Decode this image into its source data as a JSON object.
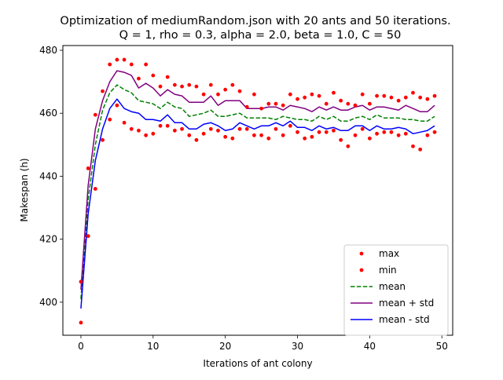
{
  "chart_data": {
    "type": "line",
    "title": "Optimization of mediumRandom.json with 20 ants and 50 iterations.",
    "subtitle": "Q = 1, rho = 0.3, alpha = 2.0, beta = 1.0, C = 50",
    "xlabel": "Iterations of ant colony",
    "ylabel": "Makespan (h)",
    "xlim": [
      -2.5,
      51.5
    ],
    "ylim": [
      389.5,
      481.5
    ],
    "xticks": [
      0,
      10,
      20,
      30,
      40,
      50
    ],
    "yticks": [
      400,
      420,
      440,
      460,
      480
    ],
    "grid": false,
    "legend_position": "lower-right",
    "series": [
      {
        "name": "max",
        "style": "points",
        "color": "#ff0000",
        "x": [
          0,
          1,
          2,
          3,
          4,
          5,
          6,
          7,
          8,
          9,
          10,
          11,
          12,
          13,
          14,
          15,
          16,
          17,
          18,
          19,
          20,
          21,
          22,
          23,
          24,
          25,
          26,
          27,
          28,
          29,
          30,
          31,
          32,
          33,
          34,
          35,
          36,
          37,
          38,
          39,
          40,
          41,
          42,
          43,
          44,
          45,
          46,
          47,
          48,
          49
        ],
        "values": [
          406.5,
          442.5,
          459.5,
          467,
          475.5,
          477,
          477,
          475.5,
          471,
          475.5,
          472,
          468.5,
          471.5,
          469,
          468.5,
          469,
          468.5,
          466,
          469,
          466,
          467.5,
          469,
          467,
          462,
          466,
          461.5,
          463,
          463,
          462.5,
          466,
          464.5,
          465,
          466,
          465.5,
          463,
          466.5,
          464,
          463,
          462.5,
          466,
          463,
          465.5,
          465.5,
          465,
          464,
          465,
          466.5,
          465,
          464.5,
          465.5
        ]
      },
      {
        "name": "min",
        "style": "points",
        "color": "#ff0000",
        "x": [
          0,
          1,
          2,
          3,
          4,
          5,
          6,
          7,
          8,
          9,
          10,
          11,
          12,
          13,
          14,
          15,
          16,
          17,
          18,
          19,
          20,
          21,
          22,
          23,
          24,
          25,
          26,
          27,
          28,
          29,
          30,
          31,
          32,
          33,
          34,
          35,
          36,
          37,
          38,
          39,
          40,
          41,
          42,
          43,
          44,
          45,
          46,
          47,
          48,
          49
        ],
        "values": [
          393.5,
          421,
          436,
          451.5,
          458,
          462.5,
          457,
          455,
          454.5,
          453,
          453.5,
          456,
          456,
          454.5,
          455,
          453,
          451.5,
          453.5,
          455,
          454.5,
          452.5,
          452,
          455,
          455,
          453,
          453,
          452,
          455,
          453,
          456,
          454,
          452,
          452.5,
          454,
          454,
          454.5,
          451.5,
          449.5,
          453,
          455,
          452,
          453.5,
          454,
          454,
          453,
          453.5,
          449.5,
          448.5,
          453,
          454
        ]
      },
      {
        "name": "mean",
        "style": "dashed",
        "color": "#008000",
        "x": [
          0,
          1,
          2,
          3,
          4,
          5,
          6,
          7,
          8,
          9,
          10,
          11,
          12,
          13,
          14,
          15,
          16,
          17,
          18,
          19,
          20,
          21,
          22,
          23,
          24,
          25,
          26,
          27,
          28,
          29,
          30,
          31,
          32,
          33,
          34,
          35,
          36,
          37,
          38,
          39,
          40,
          41,
          42,
          43,
          44,
          45,
          46,
          47,
          48,
          49
        ],
        "values": [
          401,
          432.5,
          450,
          461,
          466.5,
          469,
          467.5,
          466.5,
          464,
          463.5,
          463,
          461.5,
          463.5,
          462,
          461.5,
          459,
          459.5,
          460,
          461,
          459,
          459,
          459.5,
          460,
          458.5,
          458.5,
          458.5,
          458.5,
          458,
          459,
          458.5,
          458,
          458,
          457.5,
          459,
          458,
          459,
          457.5,
          457.5,
          458.5,
          459,
          458,
          459.5,
          458.5,
          458.5,
          458.5,
          458,
          458,
          457.5,
          457.5,
          459
        ]
      },
      {
        "name": "mean + std",
        "style": "solid",
        "color": "#800080",
        "x": [
          0,
          1,
          2,
          3,
          4,
          5,
          6,
          7,
          8,
          9,
          10,
          11,
          12,
          13,
          14,
          15,
          16,
          17,
          18,
          19,
          20,
          21,
          22,
          23,
          24,
          25,
          26,
          27,
          28,
          29,
          30,
          31,
          32,
          33,
          34,
          35,
          36,
          37,
          38,
          39,
          40,
          41,
          42,
          43,
          44,
          45,
          46,
          47,
          48,
          49
        ],
        "values": [
          404,
          437,
          455,
          464,
          470,
          473.5,
          473,
          472,
          468,
          469.5,
          468,
          465.5,
          467.5,
          466,
          465.5,
          463.5,
          463.5,
          463.5,
          465.5,
          462.5,
          464,
          464,
          464,
          461.5,
          461.5,
          461.5,
          462,
          462,
          461,
          462.5,
          462,
          461.5,
          460.5,
          462,
          461,
          462,
          461,
          461,
          462,
          462.5,
          461,
          462,
          462,
          461.5,
          461,
          462.5,
          461.5,
          460.5,
          460.5,
          462.5
        ]
      },
      {
        "name": "mean - std",
        "style": "solid",
        "color": "#0000ff",
        "x": [
          0,
          1,
          2,
          3,
          4,
          5,
          6,
          7,
          8,
          9,
          10,
          11,
          12,
          13,
          14,
          15,
          16,
          17,
          18,
          19,
          20,
          21,
          22,
          23,
          24,
          25,
          26,
          27,
          28,
          29,
          30,
          31,
          32,
          33,
          34,
          35,
          36,
          37,
          38,
          39,
          40,
          41,
          42,
          43,
          44,
          45,
          46,
          47,
          48,
          49
        ],
        "values": [
          398,
          428,
          445,
          455,
          461.5,
          464.5,
          461.5,
          460.5,
          460,
          458,
          458,
          457.5,
          459.5,
          457,
          457,
          455,
          455,
          456.5,
          457,
          456,
          454.5,
          455,
          457,
          456,
          455,
          456,
          456,
          457,
          456,
          457.5,
          455.5,
          455.5,
          454.5,
          456,
          455,
          455.5,
          454.5,
          454.5,
          456,
          456,
          454.5,
          456,
          455,
          455,
          455.5,
          455,
          453.5,
          454,
          454.5,
          456
        ]
      }
    ]
  }
}
